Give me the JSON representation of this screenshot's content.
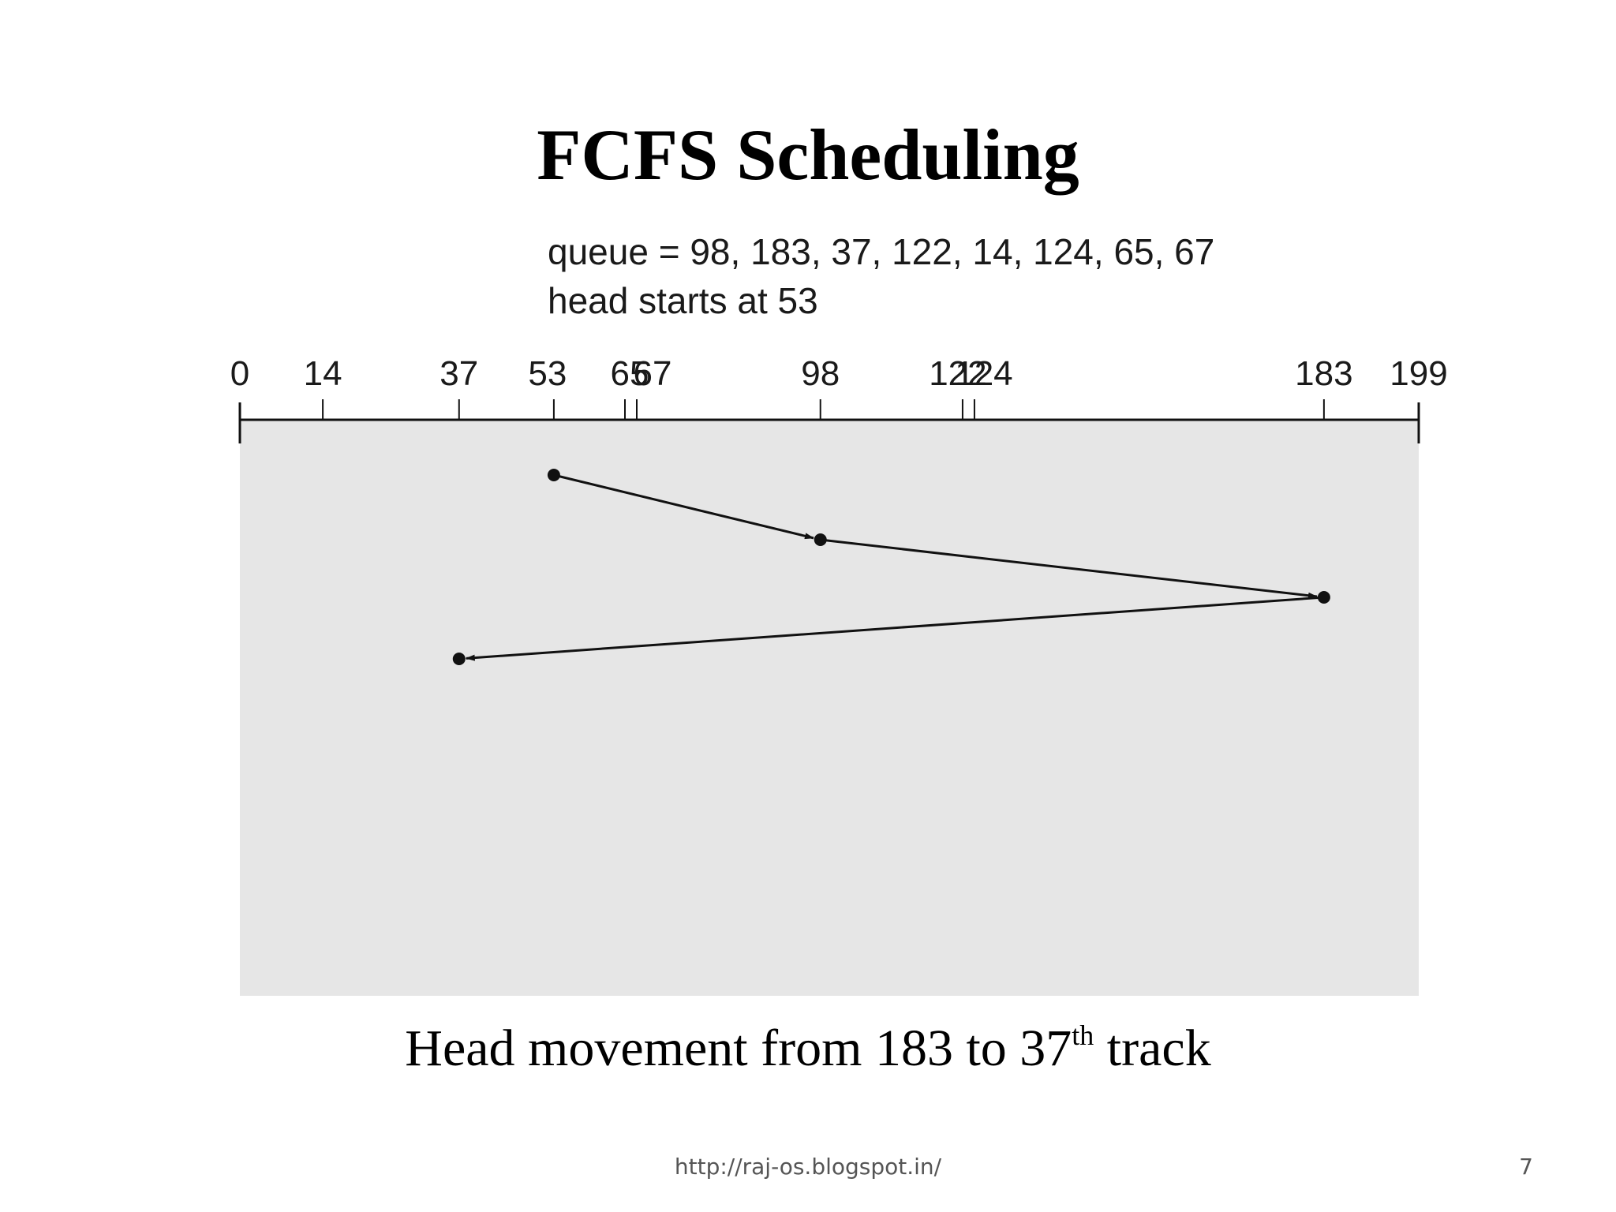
{
  "slide": {
    "title": "FCFS Scheduling",
    "caption_main": "Head movement from 183 to 37",
    "caption_sup": "th",
    "caption_tail": " track",
    "footer_url": "http://raj-os.blogspot.in/",
    "page_number": "7"
  },
  "diagram": {
    "queue_text": "queue = 98, 183, 37, 122, 14, 124, 65, 67",
    "head_text": "head starts at 53",
    "axis_min": 0,
    "axis_max": 199,
    "tick_values": [
      0,
      14,
      37,
      53,
      65,
      67,
      98,
      122,
      124,
      183,
      199
    ],
    "head_path": [
      53,
      98,
      183,
      37
    ],
    "colors": {
      "panel": "#e6e6e6",
      "line": "#111111"
    }
  }
}
